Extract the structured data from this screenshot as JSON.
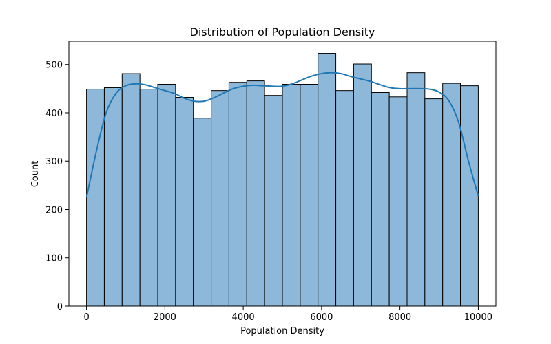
{
  "chart_data": {
    "type": "bar",
    "title": "Distribution of Population Density",
    "xlabel": "Population Density",
    "ylabel": "Count",
    "xlim": [
      -450,
      10450
    ],
    "ylim": [
      0,
      548
    ],
    "xticks": [
      0,
      2000,
      4000,
      6000,
      8000,
      10000
    ],
    "yticks": [
      0,
      100,
      200,
      300,
      400,
      500
    ],
    "bin_width": 454.5,
    "bins": [
      {
        "start": 0,
        "end": 454.5,
        "count": 449
      },
      {
        "start": 454.5,
        "end": 909,
        "count": 452
      },
      {
        "start": 909,
        "end": 1364,
        "count": 481
      },
      {
        "start": 1364,
        "end": 1818,
        "count": 449
      },
      {
        "start": 1818,
        "end": 2273,
        "count": 459
      },
      {
        "start": 2273,
        "end": 2727,
        "count": 432
      },
      {
        "start": 2727,
        "end": 3182,
        "count": 389
      },
      {
        "start": 3182,
        "end": 3636,
        "count": 446
      },
      {
        "start": 3636,
        "end": 4091,
        "count": 463
      },
      {
        "start": 4091,
        "end": 4545,
        "count": 466
      },
      {
        "start": 4545,
        "end": 5000,
        "count": 436
      },
      {
        "start": 5000,
        "end": 5455,
        "count": 459
      },
      {
        "start": 5455,
        "end": 5909,
        "count": 459
      },
      {
        "start": 5909,
        "end": 6364,
        "count": 523
      },
      {
        "start": 6364,
        "end": 6818,
        "count": 446
      },
      {
        "start": 6818,
        "end": 7273,
        "count": 501
      },
      {
        "start": 7273,
        "end": 7727,
        "count": 442
      },
      {
        "start": 7727,
        "end": 8182,
        "count": 433
      },
      {
        "start": 8182,
        "end": 8636,
        "count": 483
      },
      {
        "start": 8636,
        "end": 9091,
        "count": 429
      },
      {
        "start": 9091,
        "end": 9545,
        "count": 461
      },
      {
        "start": 9545,
        "end": 10000,
        "count": 456
      }
    ],
    "kde": {
      "x": [
        0,
        250,
        500,
        750,
        1000,
        1250,
        1500,
        1750,
        2000,
        2250,
        2500,
        2750,
        3000,
        3250,
        3500,
        3750,
        4000,
        4250,
        4500,
        4750,
        5000,
        5250,
        5500,
        5750,
        6000,
        6250,
        6500,
        6750,
        7000,
        7250,
        7500,
        7750,
        8000,
        8250,
        8500,
        8750,
        9000,
        9250,
        9500,
        9750,
        10000
      ],
      "y": [
        225,
        320,
        400,
        440,
        456,
        460,
        458,
        452,
        446,
        440,
        430,
        424,
        424,
        431,
        441,
        450,
        455,
        457,
        456,
        455,
        455,
        460,
        468,
        476,
        481,
        483,
        481,
        475,
        470,
        465,
        458,
        452,
        450,
        450,
        450,
        449,
        443,
        425,
        380,
        300,
        228
      ]
    },
    "colors": {
      "bar_fill": "#8db8da",
      "bar_edge": "#000000",
      "kde_line": "#1f77b4"
    }
  }
}
